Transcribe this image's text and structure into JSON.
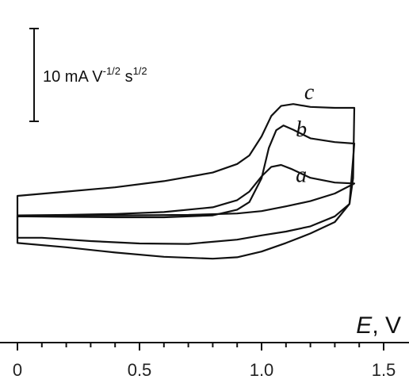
{
  "chart_data": {
    "type": "line",
    "title": "",
    "xlabel": {
      "symbol": "E",
      "unit": ", V"
    },
    "ylabel": "",
    "xlim": [
      0,
      1.55
    ],
    "xticks": [
      {
        "value": 0,
        "label": "0"
      },
      {
        "value": 0.5,
        "label": "0.5"
      },
      {
        "value": 1.0,
        "label": "1.0"
      },
      {
        "value": 1.5,
        "label": "1.5"
      }
    ],
    "y_units": "mA V^-1/2 s^1/2",
    "y_reference": "relative",
    "scale_bar": {
      "value": 10,
      "text": "10 mA V",
      "exp1": "-1/2",
      "mid": " s",
      "exp2": "1/2"
    },
    "series": [
      {
        "name": "a",
        "forward": [
          [
            0,
            -5.6
          ],
          [
            0.2,
            -5.5
          ],
          [
            0.4,
            -5.3
          ],
          [
            0.6,
            -4.9
          ],
          [
            0.8,
            -3.9
          ],
          [
            0.9,
            -2.4
          ],
          [
            0.95,
            -0.6
          ],
          [
            1.0,
            2.6
          ],
          [
            1.04,
            4.6
          ],
          [
            1.08,
            5.0
          ],
          [
            1.12,
            4.2
          ],
          [
            1.2,
            2.3
          ],
          [
            1.3,
            1.3
          ],
          [
            1.38,
            1.1
          ]
        ],
        "reverse": [
          [
            1.38,
            1.1
          ],
          [
            1.3,
            -1.0
          ],
          [
            1.2,
            -2.6
          ],
          [
            1.1,
            -3.7
          ],
          [
            1.0,
            -4.7
          ],
          [
            0.9,
            -5.2
          ],
          [
            0.7,
            -5.5
          ],
          [
            0.4,
            -5.6
          ],
          [
            0,
            -5.6
          ]
        ]
      },
      {
        "name": "b",
        "forward": [
          [
            0,
            -5.8
          ],
          [
            0.2,
            -5.9
          ],
          [
            0.4,
            -6.0
          ],
          [
            0.6,
            -6.0
          ],
          [
            0.8,
            -5.6
          ],
          [
            0.9,
            -4.4
          ],
          [
            0.95,
            -2.8
          ],
          [
            1.0,
            2.2
          ],
          [
            1.03,
            8.6
          ],
          [
            1.06,
            12.3
          ],
          [
            1.09,
            13.3
          ],
          [
            1.13,
            12.4
          ],
          [
            1.2,
            10.6
          ],
          [
            1.3,
            9.8
          ],
          [
            1.38,
            9.5
          ]
        ],
        "reverse": [
          [
            1.38,
            9.5
          ],
          [
            1.36,
            -3.2
          ],
          [
            1.3,
            -5.8
          ],
          [
            1.2,
            -7.9
          ],
          [
            1.1,
            -9.0
          ],
          [
            1.0,
            -9.8
          ],
          [
            0.9,
            -10.7
          ],
          [
            0.7,
            -11.6
          ],
          [
            0.5,
            -11.5
          ],
          [
            0.3,
            -11.0
          ],
          [
            0.1,
            -10.3
          ],
          [
            0,
            -10.3
          ]
        ]
      },
      {
        "name": "c",
        "forward": [
          [
            0,
            -1.5
          ],
          [
            0.2,
            -0.6
          ],
          [
            0.4,
            0.3
          ],
          [
            0.6,
            1.6
          ],
          [
            0.8,
            3.4
          ],
          [
            0.9,
            5.2
          ],
          [
            0.95,
            7.0
          ],
          [
            1.0,
            11.0
          ],
          [
            1.04,
            15.3
          ],
          [
            1.08,
            17.4
          ],
          [
            1.13,
            17.8
          ],
          [
            1.2,
            17.2
          ],
          [
            1.3,
            17.0
          ],
          [
            1.38,
            17.0
          ]
        ],
        "reverse": [
          [
            1.38,
            17.0
          ],
          [
            1.375,
            2.2
          ],
          [
            1.36,
            -3.2
          ],
          [
            1.3,
            -7.0
          ],
          [
            1.2,
            -9.4
          ],
          [
            1.1,
            -11.4
          ],
          [
            1.0,
            -13.2
          ],
          [
            0.9,
            -14.4
          ],
          [
            0.8,
            -14.7
          ],
          [
            0.6,
            -14.3
          ],
          [
            0.4,
            -13.4
          ],
          [
            0.2,
            -12.3
          ],
          [
            0,
            -11.4
          ]
        ]
      }
    ]
  }
}
